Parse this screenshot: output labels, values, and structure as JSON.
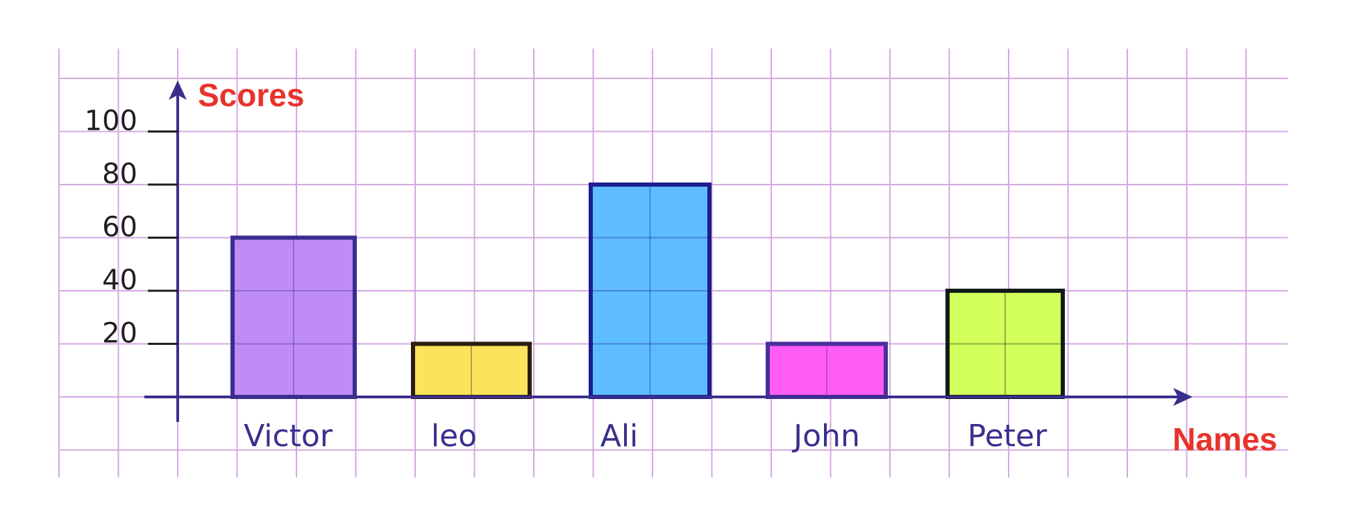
{
  "chart_data": {
    "type": "bar",
    "categories": [
      "Victor",
      "leo",
      "Ali",
      "John",
      "Peter"
    ],
    "values": [
      60,
      20,
      80,
      20,
      40
    ],
    "bar_colors": [
      "#bf8bf5",
      "#fbe45c",
      "#5dbdff",
      "#ff5cf3",
      "#d3ff5a"
    ],
    "bar_outline_colors": [
      "#3a2d8f",
      "#2b1d10",
      "#1d1e8f",
      "#4a2e9c",
      "#101c18"
    ],
    "xlabel": "Names",
    "ylabel": "Scores",
    "yticks": [
      20,
      40,
      60,
      80,
      100
    ],
    "ylim": [
      0,
      100
    ],
    "grid": true,
    "grid_color": "#d3a9e0",
    "axis_color": "#3a2f8c",
    "axis_title_color": "#e8332c"
  }
}
